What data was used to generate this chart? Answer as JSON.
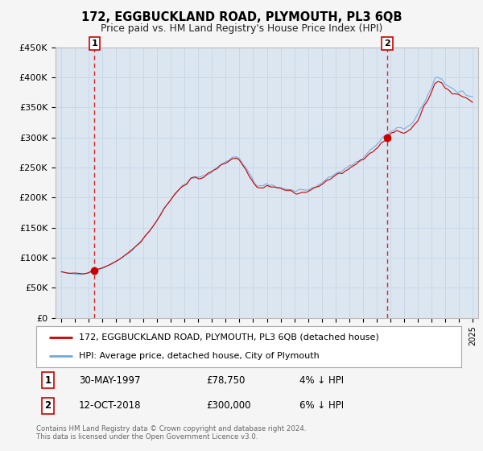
{
  "title": "172, EGGBUCKLAND ROAD, PLYMOUTH, PL3 6QB",
  "subtitle": "Price paid vs. HM Land Registry's House Price Index (HPI)",
  "legend_line1": "172, EGGBUCKLAND ROAD, PLYMOUTH, PL3 6QB (detached house)",
  "legend_line2": "HPI: Average price, detached house, City of Plymouth",
  "footer": "Contains HM Land Registry data © Crown copyright and database right 2024.\nThis data is licensed under the Open Government Licence v3.0.",
  "annotation1_label": "1",
  "annotation1_date": "30-MAY-1997",
  "annotation1_price": "£78,750",
  "annotation1_hpi": "4% ↓ HPI",
  "annotation2_label": "2",
  "annotation2_date": "12-OCT-2018",
  "annotation2_price": "£300,000",
  "annotation2_hpi": "6% ↓ HPI",
  "sale1_year": 1997.41,
  "sale1_price": 78750,
  "sale2_year": 2018.78,
  "sale2_price": 300000,
  "ylim": [
    0,
    450000
  ],
  "yticks": [
    0,
    50000,
    100000,
    150000,
    200000,
    250000,
    300000,
    350000,
    400000,
    450000
  ],
  "ytick_labels": [
    "£0",
    "£50K",
    "£100K",
    "£150K",
    "£200K",
    "£250K",
    "£300K",
    "£350K",
    "£400K",
    "£450K"
  ],
  "xlim_start": 1994.58,
  "xlim_end": 2025.42,
  "hpi_color": "#6aaadd",
  "sale_color": "#cc0000",
  "dashed_color": "#dd0000",
  "background_color": "#dce6f1",
  "grid_color": "#c8d8e8"
}
